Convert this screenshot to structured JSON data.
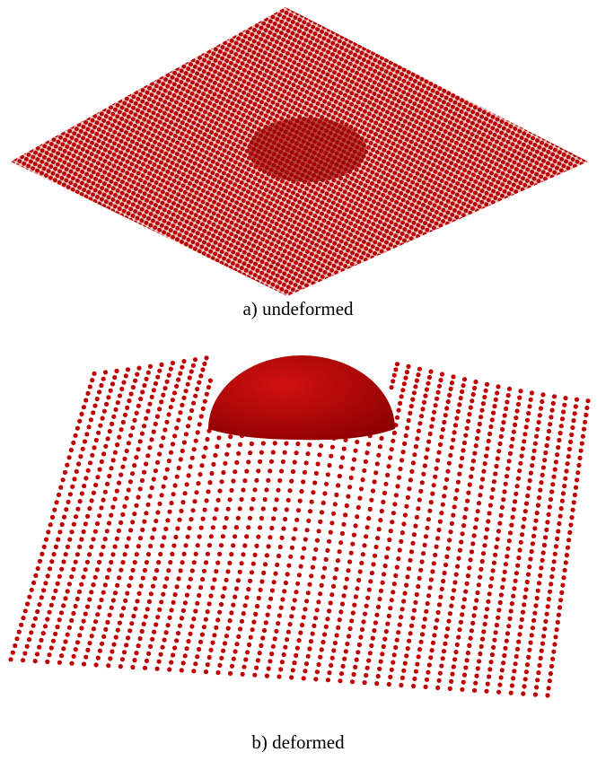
{
  "figure": {
    "panels": [
      {
        "caption": "a) undeformed"
      },
      {
        "caption": "b) deformed"
      }
    ]
  }
}
